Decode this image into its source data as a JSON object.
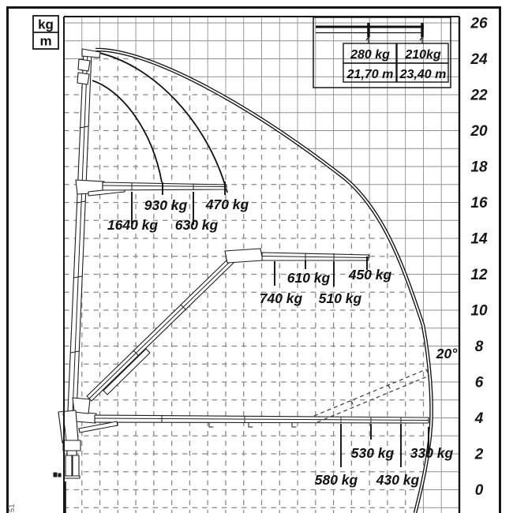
{
  "units_box": {
    "kg": "kg",
    "m": "m"
  },
  "y_axis": {
    "unit": "m",
    "labels": [
      "26",
      "24",
      "22",
      "20",
      "18",
      "16",
      "14",
      "12",
      "10",
      "8",
      "6",
      "4",
      "2",
      "0"
    ]
  },
  "inset": {
    "columns": [
      {
        "load": "280 kg",
        "reach": "21,70 m"
      },
      {
        "load": "210kg",
        "reach": "23,40 m"
      }
    ]
  },
  "load_labels": {
    "upper": [
      "1640 kg",
      "930 kg",
      "630 kg",
      "470 kg"
    ],
    "middle": [
      "740 kg",
      "610 kg",
      "510 kg",
      "450 kg"
    ],
    "lower": [
      "580 kg",
      "530 kg",
      "430 kg",
      "330 kg"
    ]
  },
  "angle_label": "20°",
  "side_code": "51"
}
